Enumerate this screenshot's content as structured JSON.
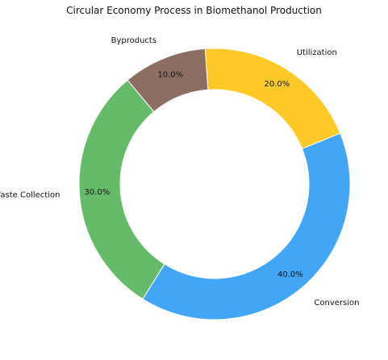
{
  "chart_data": {
    "type": "pie",
    "variant": "donut",
    "title": "Circular Economy Process in Biomethanol Production",
    "labels": [
      "Waste Collection",
      "Conversion",
      "Utilization",
      "Byproducts"
    ],
    "values": [
      30.0,
      40.0,
      20.0,
      10.0
    ],
    "value_labels": [
      "30.0%",
      "40.0%",
      "20.0%",
      "10.0%"
    ],
    "colors": [
      "#66bb6a",
      "#42a5f5",
      "#ffca28",
      "#8d6e63"
    ],
    "start_angle_deg": 130,
    "direction": "counterclockwise",
    "legend": "none"
  }
}
